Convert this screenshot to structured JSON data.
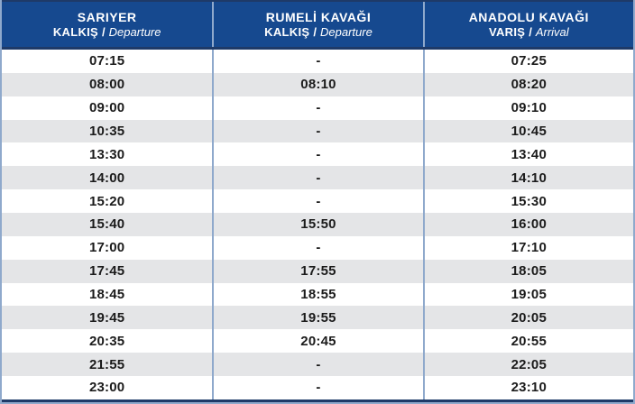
{
  "table": {
    "columns": [
      {
        "station": "SARIYER",
        "label_tr": "KALKIŞ",
        "sep": "/",
        "label_en": "Departure"
      },
      {
        "station": "RUMELİ KAVAĞI",
        "label_tr": "KALKIŞ",
        "sep": "/",
        "label_en": "Departure"
      },
      {
        "station": "ANADOLU KAVAĞI",
        "label_tr": "VARIŞ",
        "sep": "/",
        "label_en": "Arrival"
      }
    ],
    "rows": [
      [
        "07:15",
        "-",
        "07:25"
      ],
      [
        "08:00",
        "08:10",
        "08:20"
      ],
      [
        "09:00",
        "-",
        "09:10"
      ],
      [
        "10:35",
        "-",
        "10:45"
      ],
      [
        "13:30",
        "-",
        "13:40"
      ],
      [
        "14:00",
        "-",
        "14:10"
      ],
      [
        "15:20",
        "-",
        "15:30"
      ],
      [
        "15:40",
        "15:50",
        "16:00"
      ],
      [
        "17:00",
        "-",
        "17:10"
      ],
      [
        "17:45",
        "17:55",
        "18:05"
      ],
      [
        "18:45",
        "18:55",
        "19:05"
      ],
      [
        "19:45",
        "19:55",
        "20:05"
      ],
      [
        "20:35",
        "20:45",
        "20:55"
      ],
      [
        "21:55",
        "-",
        "22:05"
      ],
      [
        "23:00",
        "-",
        "23:10"
      ]
    ]
  },
  "colors": {
    "header_bg": "#16498F",
    "header_text": "#FFFFFF",
    "accent_line": "#1E3A68",
    "divider": "#8FA9CC",
    "stripe": "#E4E5E7",
    "time_text": "#1B1B1B"
  }
}
